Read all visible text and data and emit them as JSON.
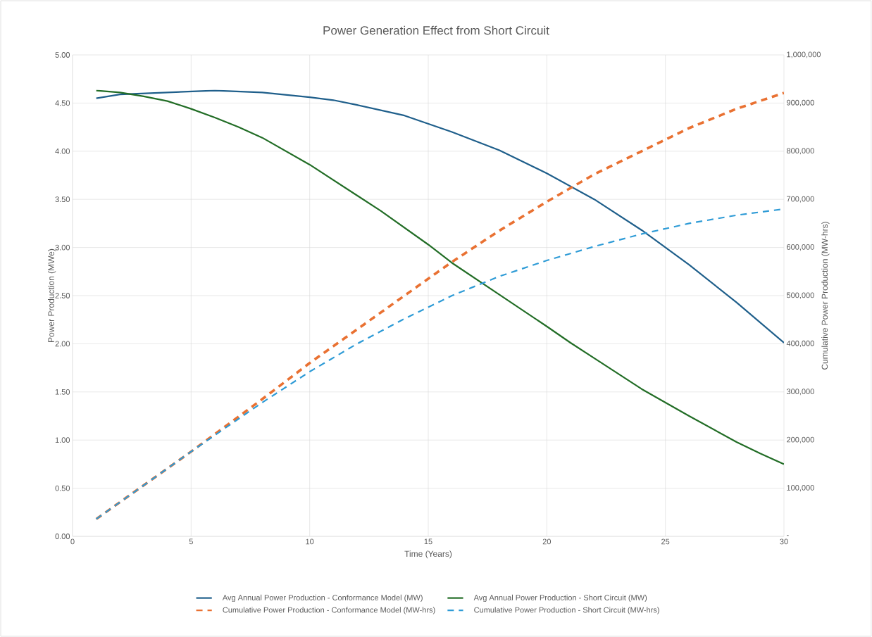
{
  "chart_data": {
    "type": "line",
    "title": "Power Generation Effect from Short Circuit",
    "xlabel": "Time (Years)",
    "ylabel": "Power Production (MWe)",
    "y2label": "Cumulative Power Production (MW-hrs)",
    "xlim": [
      0,
      30
    ],
    "xticks": [
      0,
      5,
      10,
      15,
      20,
      25,
      30
    ],
    "ylim": [
      0,
      5
    ],
    "yticks": [
      {
        "value": 0,
        "label": "0.00"
      },
      {
        "value": 0.5,
        "label": "0.50"
      },
      {
        "value": 1,
        "label": "1.00"
      },
      {
        "value": 1.5,
        "label": "1.50"
      },
      {
        "value": 2,
        "label": "2.00"
      },
      {
        "value": 2.5,
        "label": "2.50"
      },
      {
        "value": 3,
        "label": "3.00"
      },
      {
        "value": 3.5,
        "label": "3.50"
      },
      {
        "value": 4,
        "label": "4.00"
      },
      {
        "value": 4.5,
        "label": "4.50"
      },
      {
        "value": 5,
        "label": "5.00"
      }
    ],
    "y2lim": [
      0,
      1000000
    ],
    "y2ticks": [
      {
        "value": 0,
        "label": "-"
      },
      {
        "value": 100000,
        "label": "100,000"
      },
      {
        "value": 200000,
        "label": "200,000"
      },
      {
        "value": 300000,
        "label": "300,000"
      },
      {
        "value": 400000,
        "label": "400,000"
      },
      {
        "value": 500000,
        "label": "500,000"
      },
      {
        "value": 600000,
        "label": "600,000"
      },
      {
        "value": 700000,
        "label": "700,000"
      },
      {
        "value": 800000,
        "label": "800,000"
      },
      {
        "value": 900000,
        "label": "900,000"
      },
      {
        "value": 1000000,
        "label": "1,000,000"
      }
    ],
    "grid": true,
    "legend": "bottom",
    "marker": "none",
    "series": [
      {
        "name": "Avg Annual Power Production - Conformance Model (MW)",
        "color": "#1f5f8b",
        "line_style": "solid",
        "x": [
          1,
          2,
          4,
          6,
          8,
          10,
          11,
          12,
          14,
          16,
          18,
          20,
          22,
          24,
          26,
          28,
          30
        ],
        "values": [
          4.55,
          4.59,
          4.61,
          4.63,
          4.61,
          4.56,
          4.53,
          4.48,
          4.37,
          4.2,
          4.01,
          3.77,
          3.5,
          3.18,
          2.82,
          2.43,
          2.01
        ]
      },
      {
        "name": "Avg Annual Power Production - Short Circuit (MW)",
        "color": "#226d26",
        "line_style": "solid",
        "x": [
          1,
          2,
          3,
          4,
          5,
          6,
          7,
          8,
          10,
          12,
          13,
          15,
          16,
          18,
          20,
          21,
          22,
          24,
          26,
          28,
          29,
          30
        ],
        "values": [
          4.63,
          4.61,
          4.57,
          4.52,
          4.44,
          4.35,
          4.25,
          4.14,
          3.86,
          3.54,
          3.38,
          3.03,
          2.84,
          2.51,
          2.18,
          2.01,
          1.85,
          1.53,
          1.25,
          0.98,
          0.86,
          0.75
        ]
      },
      {
        "name": "Cumulative Power Production - Conformance Model (MW-hrs)",
        "color": "#e97132",
        "line_style": "dashed",
        "axis": "y2",
        "x": [
          1,
          5,
          8,
          10,
          12,
          14,
          16,
          18,
          20,
          22,
          24,
          26,
          28,
          30
        ],
        "values": [
          36000,
          176000,
          285000,
          360000,
          430000,
          500000,
          570000,
          635000,
          695000,
          752000,
          800000,
          848000,
          888000,
          921000
        ]
      },
      {
        "name": "Cumulative Power  Production - Short Circuit (MW-hrs)",
        "color": "#2e9bd6",
        "line_style": "dashed",
        "axis": "y2",
        "x": [
          1,
          5,
          8,
          10,
          12,
          14,
          16,
          18,
          20,
          22,
          24,
          26,
          28,
          30
        ],
        "values": [
          36000,
          176000,
          278000,
          342000,
          400000,
          452000,
          500000,
          540000,
          573000,
          602000,
          628000,
          650000,
          667000,
          680000
        ]
      }
    ]
  }
}
